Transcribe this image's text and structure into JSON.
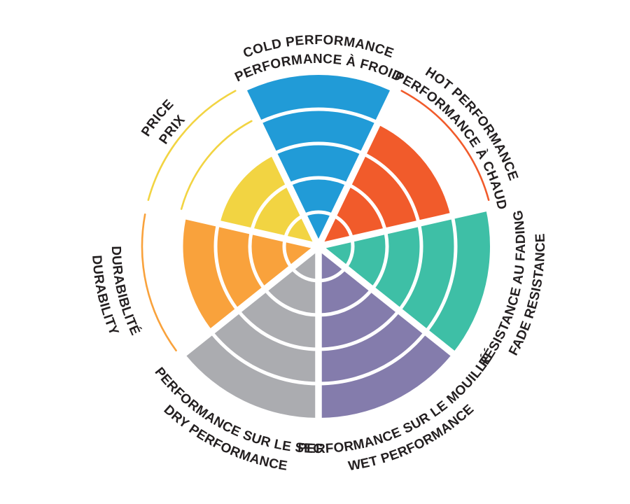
{
  "chart_data": {
    "type": "pie",
    "subtype": "segmented-polar-wheel",
    "title": "",
    "scale": {
      "min": 0,
      "max": 5,
      "rings": 5
    },
    "legend_position": "none",
    "grid": "white ring dividers and radial gaps; unfilled rings shown as thin colored outline arcs",
    "background": "#ffffff",
    "text_color": "#231f20",
    "sectors": [
      {
        "id": "cold-performance",
        "label_primary": "COLD PERFORMANCE",
        "label_secondary": "PERFORMANCE À FROID",
        "value": 5,
        "color": "#219bd7"
      },
      {
        "id": "hot-performance",
        "label_primary": "HOT PERFORMANCE",
        "label_secondary": "PERFORMANCE À CHAUD",
        "value": 4,
        "color": "#f15b2b"
      },
      {
        "id": "fade-resistance",
        "label_primary": "RÉSISTANCE AU FADING",
        "label_secondary": "FADE RESISTANCE",
        "value": 5,
        "color": "#3ebfa6"
      },
      {
        "id": "wet-performance",
        "label_primary": "PERFORMANCE SUR LE MOUILLÉ",
        "label_secondary": "WET PERFORMANCE",
        "value": 5,
        "color": "#847cac"
      },
      {
        "id": "dry-performance",
        "label_primary": "PERFORMANCE SUR LE SEC",
        "label_secondary": "DRY PERFORMANCE",
        "value": 5,
        "color": "#abacb0"
      },
      {
        "id": "durability",
        "label_primary": "DURABIBLITÉ",
        "label_secondary": "DURABILITY",
        "value": 4,
        "color": "#f9a23c"
      },
      {
        "id": "price",
        "label_primary": "PRICE",
        "label_secondary": "PRIX",
        "value": 3,
        "color": "#f2d442"
      }
    ]
  }
}
